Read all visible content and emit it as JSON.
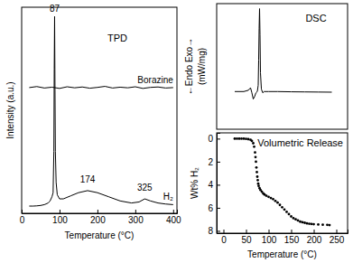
{
  "chart_data": [
    {
      "type": "line",
      "title": "TPD",
      "x_label": "Temperature (°C)",
      "y_label": "Intensity (a.u.)",
      "xlim": [
        0,
        410
      ],
      "xticks": [
        0,
        100,
        200,
        300,
        400
      ],
      "ylim": [
        0,
        100
      ],
      "tick_labels": "x",
      "series": [
        {
          "name": "Borazine",
          "color": "#000000",
          "x": [
            20,
            40,
            60,
            80,
            100,
            120,
            140,
            160,
            180,
            200,
            220,
            240,
            260,
            280,
            300,
            320,
            340,
            360,
            380,
            400
          ],
          "values": [
            61,
            61.5,
            60.8,
            61.2,
            60.6,
            61.4,
            60.9,
            61.3,
            60.7,
            61.1,
            61.6,
            60.8,
            61.2,
            60.9,
            61.4,
            60.6,
            61.1,
            61.3,
            60.8,
            61.0
          ]
        },
        {
          "name": "H₂",
          "color": "#000000",
          "x": [
            20,
            30,
            40,
            50,
            60,
            70,
            75,
            80,
            83,
            85,
            86,
            87,
            88,
            89,
            91,
            94,
            100,
            110,
            130,
            150,
            174,
            200,
            230,
            260,
            290,
            310,
            325,
            340,
            360,
            380,
            400
          ],
          "values": [
            3.5,
            3.5,
            3.6,
            3.8,
            4.2,
            5,
            6,
            8,
            10,
            30,
            70,
            95.5,
            60,
            30,
            15,
            9,
            7,
            7,
            8.5,
            10,
            11,
            10,
            8,
            6,
            5,
            5.5,
            7,
            6,
            5,
            4.5,
            4.2
          ]
        }
      ],
      "annotations": [
        {
          "text": "87",
          "x": 87,
          "y": 98
        },
        {
          "text": "174",
          "x": 174,
          "y": 15
        },
        {
          "text": "325",
          "x": 325,
          "y": 11
        }
      ]
    },
    {
      "type": "line",
      "title": "DSC",
      "y_label": [
        "←Endo Exo→",
        "(mW/mg)"
      ],
      "xlim": [
        -15,
        275
      ],
      "ylim": [
        0,
        100
      ],
      "tick_labels": false,
      "series": [
        {
          "color": "#000000",
          "x": [
            25,
            35,
            45,
            55,
            60,
            63,
            66,
            69,
            72,
            75,
            77,
            78,
            79,
            80,
            81,
            82,
            84,
            87,
            90,
            100,
            120,
            150,
            180,
            210,
            240
          ],
          "values": [
            30,
            30,
            30,
            31,
            33,
            29,
            24,
            26,
            29,
            30,
            35,
            55,
            80,
            96,
            75,
            45,
            32,
            29,
            30,
            30,
            30,
            29.8,
            29.7,
            29.6,
            29.5
          ]
        }
      ]
    },
    {
      "type": "scatter",
      "title": "Volumetric Release",
      "x_label": "Temperature (°C)",
      "y_label": "Wt% H₂",
      "xlim": [
        -15,
        275
      ],
      "xticks": [
        0,
        50,
        100,
        150,
        200,
        250
      ],
      "ylim": [
        8.2,
        -0.5
      ],
      "yticks": [
        0,
        2,
        4,
        6,
        8
      ],
      "series": [
        {
          "color": "#000000",
          "marker": "circle",
          "x": [
            25,
            30,
            35,
            40,
            45,
            50,
            55,
            60,
            63,
            66,
            68,
            70,
            71,
            72,
            73,
            74,
            75,
            76,
            77,
            78,
            80,
            82,
            85,
            88,
            91,
            95,
            100,
            105,
            110,
            115,
            120,
            125,
            130,
            135,
            140,
            145,
            150,
            155,
            160,
            165,
            170,
            175,
            180,
            185,
            190,
            195,
            200,
            210,
            220,
            230,
            235
          ],
          "values": [
            0,
            0,
            0,
            0,
            0,
            0.02,
            0.05,
            0.1,
            0.2,
            0.4,
            0.7,
            1.2,
            1.6,
            2.0,
            2.5,
            2.9,
            3.3,
            3.6,
            3.9,
            4.1,
            4.3,
            4.45,
            4.6,
            4.75,
            4.85,
            4.95,
            5.05,
            5.15,
            5.25,
            5.4,
            5.55,
            5.75,
            5.95,
            6.15,
            6.35,
            6.55,
            6.75,
            6.9,
            7.0,
            7.1,
            7.2,
            7.25,
            7.3,
            7.35,
            7.38,
            7.4,
            7.42,
            7.45,
            7.47,
            7.48,
            7.5
          ]
        }
      ]
    }
  ]
}
